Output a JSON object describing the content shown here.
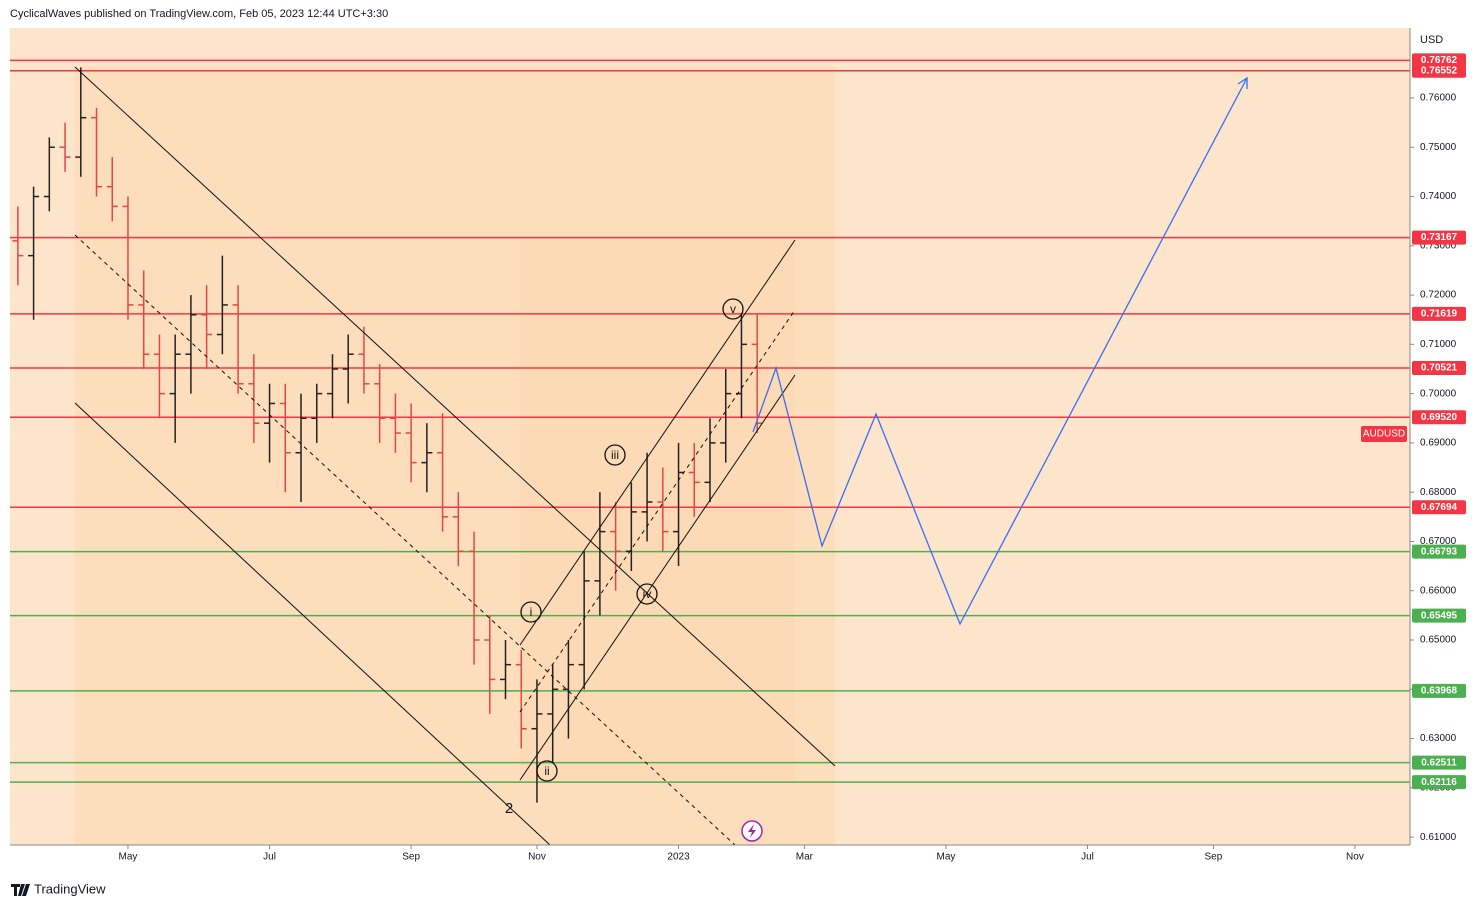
{
  "header": {
    "text": "CyclicalWaves published on TradingView.com, Feb 05, 2023 12:44 UTC+3:30"
  },
  "footer": {
    "brand": "TradingView"
  },
  "chart_data": {
    "type": "ohlc",
    "currency": "USD",
    "categories": [
      null,
      null,
      null,
      null,
      null,
      null,
      null,
      "May",
      null,
      null,
      null,
      null,
      null,
      null,
      null,
      null,
      "Jul",
      null,
      null,
      null,
      null,
      null,
      null,
      null,
      null,
      "Sep",
      null,
      null,
      null,
      null,
      null,
      null,
      null,
      "Nov",
      null,
      null,
      null,
      null,
      null,
      null,
      null,
      null,
      "2023",
      null,
      null,
      null,
      null,
      null,
      null,
      null,
      "Mar",
      null,
      null,
      null,
      null,
      null,
      null,
      null,
      null,
      "May",
      null,
      null,
      null,
      null,
      null,
      null,
      null,
      null,
      "Jul",
      null,
      null,
      null,
      null,
      null,
      null,
      null,
      "Sep",
      null,
      null,
      null,
      null,
      null,
      null,
      null,
      null,
      "Nov",
      null,
      null,
      null
    ],
    "up_color": "#222222",
    "down_color": "#e04848",
    "series": [
      {
        "name": "AUDUSD",
        "color": "#f23645",
        "open": [
          0.731,
          0.728,
          0.74,
          0.75,
          0.748,
          0.756,
          0.742,
          0.738,
          0.718,
          0.708,
          0.7,
          0.708,
          0.716,
          0.712,
          0.718,
          0.702,
          0.694,
          0.698,
          0.688,
          0.695,
          0.7,
          0.705,
          0.708,
          0.702,
          0.695,
          0.692,
          0.686,
          0.688,
          0.675,
          0.668,
          0.65,
          0.642,
          0.645,
          0.632,
          0.635,
          0.64,
          0.645,
          0.662,
          0.672,
          0.668,
          0.676,
          0.678,
          0.672,
          0.684,
          0.682,
          0.69,
          0.7,
          0.71,
          null,
          null,
          null,
          null,
          null,
          null,
          null,
          null,
          null,
          null,
          null,
          null,
          null,
          null,
          null,
          null,
          null,
          null,
          null,
          null,
          null,
          null,
          null,
          null,
          null,
          null,
          null,
          null,
          null,
          null,
          null,
          null,
          null,
          null,
          null,
          null,
          null,
          null,
          null,
          null,
          null
        ],
        "high": [
          0.738,
          0.742,
          0.752,
          0.755,
          0.7662,
          0.758,
          0.748,
          0.74,
          0.725,
          0.712,
          0.712,
          0.72,
          0.722,
          0.728,
          0.722,
          0.708,
          0.702,
          0.702,
          0.7,
          0.702,
          0.708,
          0.712,
          0.7136,
          0.706,
          0.7,
          0.698,
          0.694,
          0.696,
          0.68,
          0.672,
          0.655,
          0.65,
          0.648,
          0.642,
          0.645,
          0.65,
          0.668,
          0.68,
          0.678,
          0.682,
          0.688,
          0.685,
          0.69,
          0.69,
          0.695,
          0.705,
          0.716,
          0.716,
          null,
          null,
          null,
          null,
          null,
          null,
          null,
          null,
          null,
          null,
          null,
          null,
          null,
          null,
          null,
          null,
          null,
          null,
          null,
          null,
          null,
          null,
          null,
          null,
          null,
          null,
          null,
          null,
          null,
          null,
          null,
          null,
          null,
          null,
          null,
          null,
          null,
          null,
          null,
          null,
          null
        ],
        "low": [
          0.722,
          0.715,
          0.737,
          0.745,
          0.744,
          0.74,
          0.735,
          0.715,
          0.705,
          0.695,
          0.69,
          0.7,
          0.705,
          0.708,
          0.7,
          0.69,
          0.686,
          0.68,
          0.678,
          0.69,
          0.695,
          0.698,
          0.7,
          0.69,
          0.688,
          0.682,
          0.68,
          0.672,
          0.665,
          0.645,
          0.635,
          0.638,
          0.628,
          0.617,
          0.625,
          0.63,
          0.64,
          0.655,
          0.66,
          0.664,
          0.67,
          0.668,
          0.665,
          0.675,
          0.678,
          0.686,
          0.695,
          0.692,
          null,
          null,
          null,
          null,
          null,
          null,
          null,
          null,
          null,
          null,
          null,
          null,
          null,
          null,
          null,
          null,
          null,
          null,
          null,
          null,
          null,
          null,
          null,
          null,
          null,
          null,
          null,
          null,
          null,
          null,
          null,
          null,
          null,
          null,
          null,
          null,
          null,
          null,
          null,
          null,
          null
        ],
        "close": [
          0.728,
          0.74,
          0.75,
          0.748,
          0.756,
          0.742,
          0.738,
          0.718,
          0.708,
          0.7,
          0.708,
          0.716,
          0.712,
          0.718,
          0.702,
          0.694,
          0.698,
          0.688,
          0.695,
          0.7,
          0.705,
          0.708,
          0.702,
          0.695,
          0.692,
          0.686,
          0.688,
          0.675,
          0.668,
          0.65,
          0.642,
          0.645,
          0.632,
          0.635,
          0.64,
          0.645,
          0.662,
          0.672,
          0.668,
          0.676,
          0.678,
          0.672,
          0.684,
          0.682,
          0.69,
          0.7,
          0.71,
          0.694,
          null,
          null,
          null,
          null,
          null,
          null,
          null,
          null,
          null,
          null,
          null,
          null,
          null,
          null,
          null,
          null,
          null,
          null,
          null,
          null,
          null,
          null,
          null,
          null,
          null,
          null,
          null,
          null,
          null,
          null,
          null,
          null,
          null,
          null,
          null,
          null,
          null,
          null,
          null,
          null,
          null
        ]
      }
    ],
    "ylim": [
      0.6084,
      0.7742
    ],
    "yticks": [
      {
        "value": 0.61,
        "label": "0.61000"
      },
      {
        "value": 0.62,
        "label": "0.62000"
      },
      {
        "value": 0.63,
        "label": "0.63000"
      },
      {
        "value": 0.64,
        "label": "0.64000"
      },
      {
        "value": 0.65,
        "label": "0.65000"
      },
      {
        "value": 0.66,
        "label": "0.66000"
      },
      {
        "value": 0.67,
        "label": "0.67000"
      },
      {
        "value": 0.68,
        "label": "0.68000"
      },
      {
        "value": 0.69,
        "label": "0.69000"
      },
      {
        "value": 0.7,
        "label": "0.70000"
      },
      {
        "value": 0.71,
        "label": "0.71000"
      },
      {
        "value": 0.72,
        "label": "0.72000"
      },
      {
        "value": 0.73,
        "label": "0.73000"
      },
      {
        "value": 0.74,
        "label": "0.74000"
      },
      {
        "value": 0.75,
        "label": "0.75000"
      },
      {
        "value": 0.76,
        "label": "0.76000"
      }
    ],
    "levels": [
      {
        "value": 0.76762,
        "label": "0.76762",
        "color": "#f23645"
      },
      {
        "value": 0.76552,
        "label": "0.76552",
        "color": "#f23645"
      },
      {
        "value": 0.73167,
        "label": "0.73167",
        "color": "#f23645"
      },
      {
        "value": 0.71619,
        "label": "0.71619",
        "color": "#f23645"
      },
      {
        "value": 0.70521,
        "label": "0.70521",
        "color": "#f23645"
      },
      {
        "value": 0.6952,
        "label": "0.69520",
        "color": "#f23645"
      },
      {
        "value": 0.67694,
        "label": "0.67694",
        "color": "#f23645"
      },
      {
        "value": 0.66793,
        "label": "0.66793",
        "color": "#4caf50"
      },
      {
        "value": 0.65495,
        "label": "0.65495",
        "color": "#4caf50"
      },
      {
        "value": 0.63968,
        "label": "0.63968",
        "color": "#4caf50"
      },
      {
        "value": 0.62511,
        "label": "0.62511",
        "color": "#4caf50"
      },
      {
        "value": 0.62116,
        "label": "0.62116",
        "color": "#4caf50"
      }
    ],
    "annotations": [
      "i",
      "ii",
      "iii",
      "iv",
      "v",
      "2"
    ]
  }
}
